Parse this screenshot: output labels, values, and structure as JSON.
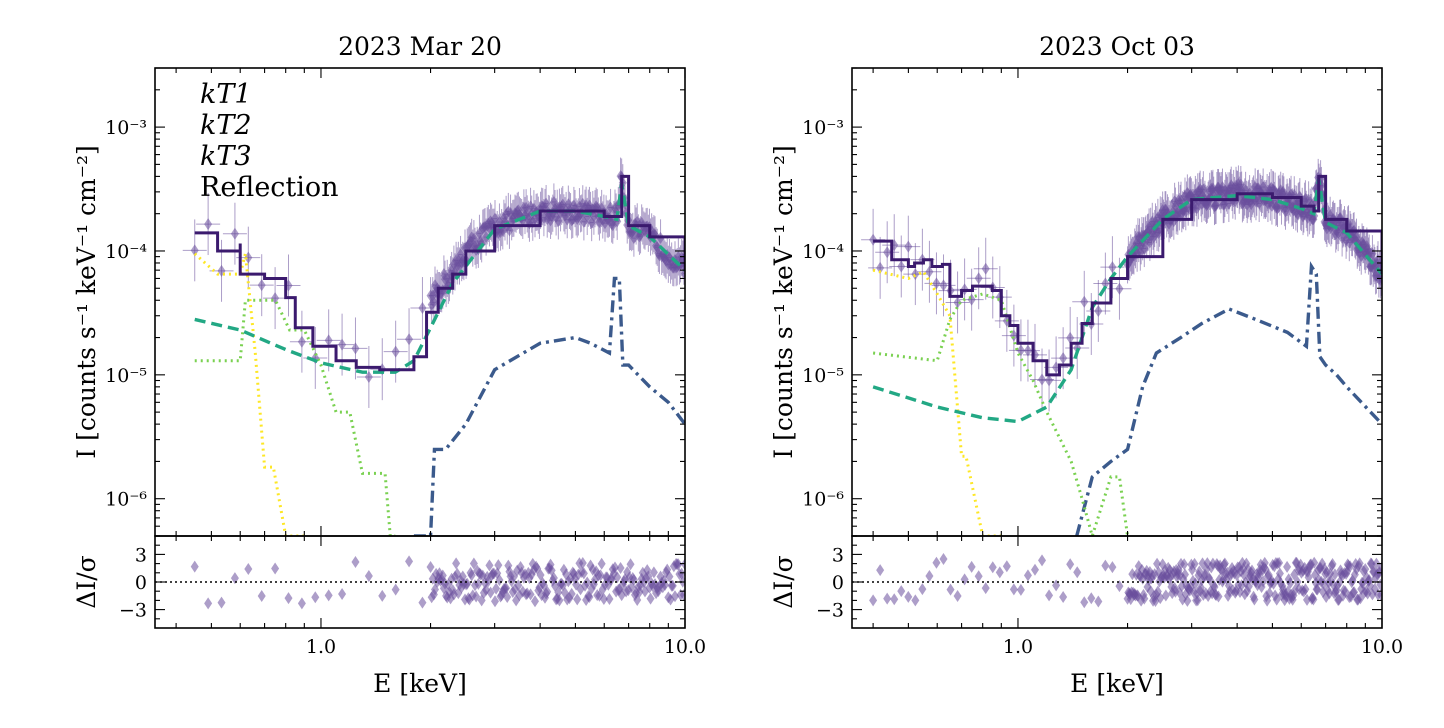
{
  "colors": {
    "kT1": "#fde725",
    "kT2": "#7ad151",
    "kT3": "#22a884",
    "reflection": "#3b5a8c",
    "total": "#3b1a6e",
    "data": "#6a4f9c"
  },
  "legend": {
    "kT1": "kT1",
    "kT2": "kT2",
    "kT3": "kT3",
    "reflection": "Reflection"
  },
  "chart_data": [
    {
      "type": "line",
      "title": "2023 Mar 20",
      "xlabel": "E [keV]",
      "ylabel": "I [counts s⁻¹ keV⁻¹ cm⁻²]",
      "resid_ylabel": "ΔI/σ",
      "xscale": "log",
      "yscale": "log",
      "xlim": [
        0.35,
        10.0
      ],
      "ylim": [
        5e-07,
        0.003
      ],
      "resid_ylim": [
        -5,
        5
      ],
      "x_tick_labels": [
        "1.0",
        "10.0"
      ],
      "y_tick_labels": [
        "10⁻⁶",
        "10⁻⁵",
        "10⁻⁴",
        "10⁻³"
      ],
      "resid_tick_labels": [
        "3",
        "0",
        "−3"
      ],
      "legend_position": "top-left",
      "series": [
        {
          "key": "kT1",
          "style": "dotted",
          "x": [
            0.45,
            0.52,
            0.6,
            0.62,
            0.66,
            0.7,
            0.74,
            0.8,
            0.9
          ],
          "y": [
            9.5e-05,
            6.5e-05,
            6.5e-05,
            9.5e-05,
            1.5e-05,
            1.8e-06,
            1.8e-06,
            5e-07,
            5e-07
          ]
        },
        {
          "key": "kT2",
          "style": "dotted",
          "x": [
            0.45,
            0.6,
            0.62,
            0.7,
            0.75,
            0.82,
            0.9,
            1.0,
            1.1,
            1.2,
            1.3,
            1.5,
            1.55,
            1.6
          ],
          "y": [
            1.3e-05,
            1.3e-05,
            4e-05,
            4e-05,
            4e-05,
            2.3e-05,
            2.3e-05,
            1.2e-05,
            5e-06,
            5e-06,
            1.6e-06,
            1.6e-06,
            5e-07,
            5e-07
          ]
        },
        {
          "key": "kT3",
          "style": "dashed",
          "x": [
            0.45,
            0.6,
            0.8,
            1.0,
            1.3,
            1.6,
            1.8,
            2.0,
            2.3,
            3.0,
            4.0,
            5.0,
            6.0,
            6.5,
            6.7,
            7.0,
            8.0,
            10.0
          ],
          "y": [
            2.8e-05,
            2.3e-05,
            1.6e-05,
            1.25e-05,
            1.05e-05,
            1.05e-05,
            1.3e-05,
            2.4e-05,
            5.5e-05,
            0.00015,
            0.00021,
            0.00021,
            0.00019,
            0.00018,
            0.00035,
            0.00016,
            0.00013,
            7e-05
          ]
        },
        {
          "key": "reflection",
          "style": "dashdot",
          "x": [
            1.8,
            2.0,
            2.05,
            2.2,
            2.5,
            3.0,
            4.0,
            5.0,
            5.5,
            6.2,
            6.4,
            6.6,
            6.75,
            7.0,
            7.2,
            8.0,
            9.0,
            10.0
          ],
          "y": [
            5e-07,
            5e-07,
            2.5e-06,
            2.5e-06,
            4e-06,
            1.1e-05,
            1.8e-05,
            2e-05,
            1.8e-05,
            1.5e-05,
            6e-05,
            6e-05,
            1.2e-05,
            1.2e-05,
            1.1e-05,
            8e-06,
            6e-06,
            4e-06
          ]
        },
        {
          "key": "total",
          "style": "step",
          "x": [
            0.45,
            0.52,
            0.6,
            0.6,
            0.7,
            0.8,
            0.85,
            0.95,
            1.1,
            1.25,
            1.45,
            1.6,
            1.8,
            1.95,
            2.1,
            2.3,
            2.5,
            3.0,
            4.0,
            5.0,
            6.0,
            6.5,
            6.7,
            7.0,
            8.0,
            10.0
          ],
          "y": [
            0.00014,
            0.0001,
            0.000115,
            6.5e-05,
            6e-05,
            4.2e-05,
            2.4e-05,
            1.7e-05,
            1.3e-05,
            1.15e-05,
            1.1e-05,
            1.1e-05,
            1.4e-05,
            3.2e-05,
            5e-05,
            6.5e-05,
            0.0001,
            0.00016,
            0.00021,
            0.00021,
            0.00019,
            0.00019,
            0.0004,
            0.00016,
            0.00013,
            7e-05
          ]
        }
      ]
    },
    {
      "type": "line",
      "title": "2023 Oct 03",
      "xlabel": "E [keV]",
      "ylabel": "I [counts s⁻¹ keV⁻¹ cm⁻²]",
      "resid_ylabel": "ΔI/σ",
      "xscale": "log",
      "yscale": "log",
      "xlim": [
        0.35,
        10.0
      ],
      "ylim": [
        5e-07,
        0.003
      ],
      "resid_ylim": [
        -5,
        5
      ],
      "x_tick_labels": [
        "1.0",
        "10.0"
      ],
      "y_tick_labels": [
        "10⁻⁶",
        "10⁻⁵",
        "10⁻⁴",
        "10⁻³"
      ],
      "resid_tick_labels": [
        "3",
        "0",
        "−3"
      ],
      "series": [
        {
          "key": "kT1",
          "style": "dotted",
          "x": [
            0.4,
            0.5,
            0.55,
            0.6,
            0.65,
            0.7,
            0.72,
            0.8,
            0.9
          ],
          "y": [
            7e-05,
            6e-05,
            6.8e-05,
            4.5e-05,
            3e-05,
            2.2e-06,
            2.2e-06,
            5e-07,
            5e-07
          ]
        },
        {
          "key": "kT2",
          "style": "dotted",
          "x": [
            0.4,
            0.6,
            0.65,
            0.7,
            0.8,
            0.9,
            1.0,
            1.1,
            1.2,
            1.4,
            1.5,
            1.6,
            1.8,
            1.9,
            2.0
          ],
          "y": [
            1.5e-05,
            1.3e-05,
            2.8e-05,
            4e-05,
            4.5e-05,
            4e-05,
            1.5e-05,
            9e-06,
            5e-06,
            2e-06,
            1e-06,
            5e-07,
            1.5e-06,
            1.5e-06,
            5e-07
          ]
        },
        {
          "key": "kT3",
          "style": "dashed",
          "x": [
            0.4,
            0.6,
            0.8,
            1.0,
            1.2,
            1.4,
            1.6,
            1.8,
            2.0,
            2.5,
            3.0,
            4.0,
            5.0,
            6.0,
            6.5,
            6.7,
            7.0,
            8.0,
            10.0
          ],
          "y": [
            8e-06,
            5.5e-06,
            4.5e-06,
            4.2e-06,
            5.5e-06,
            1.1e-05,
            3.5e-05,
            6e-05,
            9e-05,
            0.00018,
            0.00026,
            0.00028,
            0.00026,
            0.00022,
            0.0002,
            0.00038,
            0.00017,
            0.00014,
            6.5e-05
          ]
        },
        {
          "key": "reflection",
          "style": "dashdot",
          "x": [
            1.45,
            1.6,
            1.8,
            2.0,
            2.2,
            2.4,
            2.8,
            3.2,
            3.8,
            4.5,
            5.5,
            6.2,
            6.4,
            6.6,
            6.75,
            7.0,
            7.5,
            8.0,
            10.0
          ],
          "y": [
            5e-07,
            1.5e-06,
            2e-06,
            2.5e-06,
            8e-06,
            1.5e-05,
            2e-05,
            2.6e-05,
            3.4e-05,
            2.8e-05,
            2.2e-05,
            1.7e-05,
            7.5e-05,
            6.5e-05,
            1.4e-05,
            1.2e-05,
            1e-05,
            8e-06,
            4e-06
          ]
        },
        {
          "key": "total",
          "style": "step",
          "x": [
            0.4,
            0.45,
            0.5,
            0.52,
            0.55,
            0.58,
            0.62,
            0.65,
            0.7,
            0.75,
            0.8,
            0.85,
            0.9,
            0.95,
            1.0,
            1.1,
            1.2,
            1.3,
            1.4,
            1.5,
            1.6,
            1.8,
            2.0,
            2.5,
            3.0,
            4.0,
            5.0,
            6.0,
            6.5,
            6.7,
            7.0,
            8.0,
            10.0
          ],
          "y": [
            0.00012,
            8.5e-05,
            7.5e-05,
            8e-05,
            8.5e-05,
            7.5e-05,
            7.8e-05,
            4.3e-05,
            4.8e-05,
            5.2e-05,
            5.2e-05,
            4.8e-05,
            3e-05,
            2.5e-05,
            1.8e-05,
            1.3e-05,
            1e-05,
            1.2e-05,
            1.8e-05,
            2.6e-05,
            3.8e-05,
            6e-05,
            9e-05,
            0.00018,
            0.00026,
            0.00029,
            0.00027,
            0.00023,
            0.00021,
            0.0004,
            0.00018,
            0.000145,
            6.5e-05
          ]
        }
      ]
    }
  ]
}
